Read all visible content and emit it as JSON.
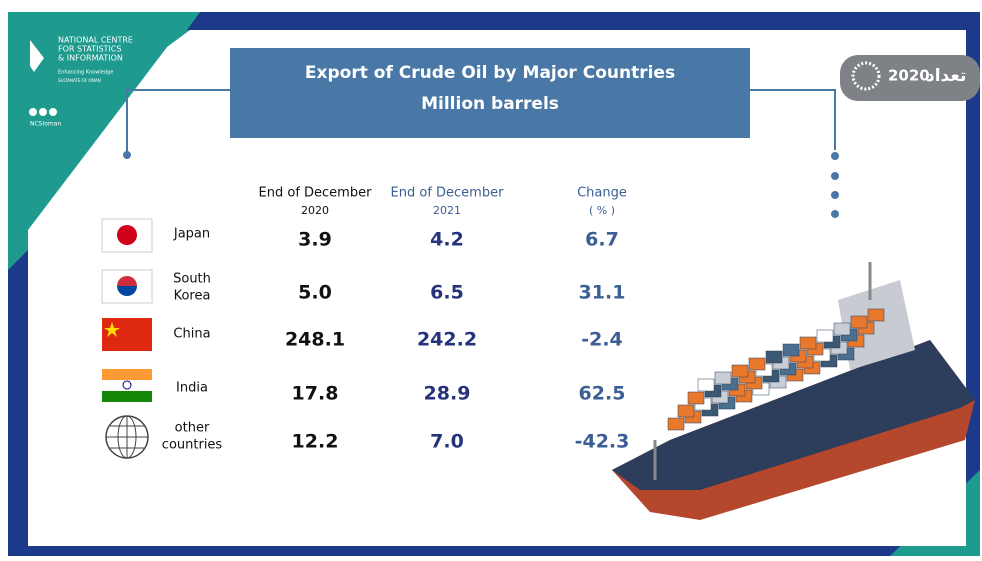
{
  "logo": {
    "name": [
      "NATIONAL CENTRE",
      "FOR STATISTICS",
      "& INFORMATION"
    ],
    "tagline": "Enhancing Knowledge",
    "country": "SULTANATE OF OMAN",
    "handle": "NCSIoman"
  },
  "census_logo": {
    "year": "2020",
    "word": "تعداد"
  },
  "header": {
    "title": "Export of Crude Oil by Major Countries",
    "subtitle": "Million barrels"
  },
  "table": {
    "columns": [
      [
        "End of December",
        "2020"
      ],
      [
        "End of December",
        "2021"
      ],
      [
        "Change",
        "( % )"
      ]
    ],
    "rows": [
      {
        "country": [
          "Japan"
        ],
        "values": [
          "3.9",
          "4.2",
          "6.7"
        ]
      },
      {
        "country": [
          "South",
          "Korea"
        ],
        "values": [
          "5.0",
          "6.5",
          "31.1"
        ]
      },
      {
        "country": [
          "China"
        ],
        "values": [
          "248.1",
          "242.2",
          "-2.4"
        ]
      },
      {
        "country": [
          "India"
        ],
        "values": [
          "17.8",
          "28.9",
          "62.5"
        ]
      },
      {
        "country": [
          "other",
          "countries"
        ],
        "values": [
          "12.2",
          "7.0",
          "-42.3"
        ]
      }
    ]
  }
}
